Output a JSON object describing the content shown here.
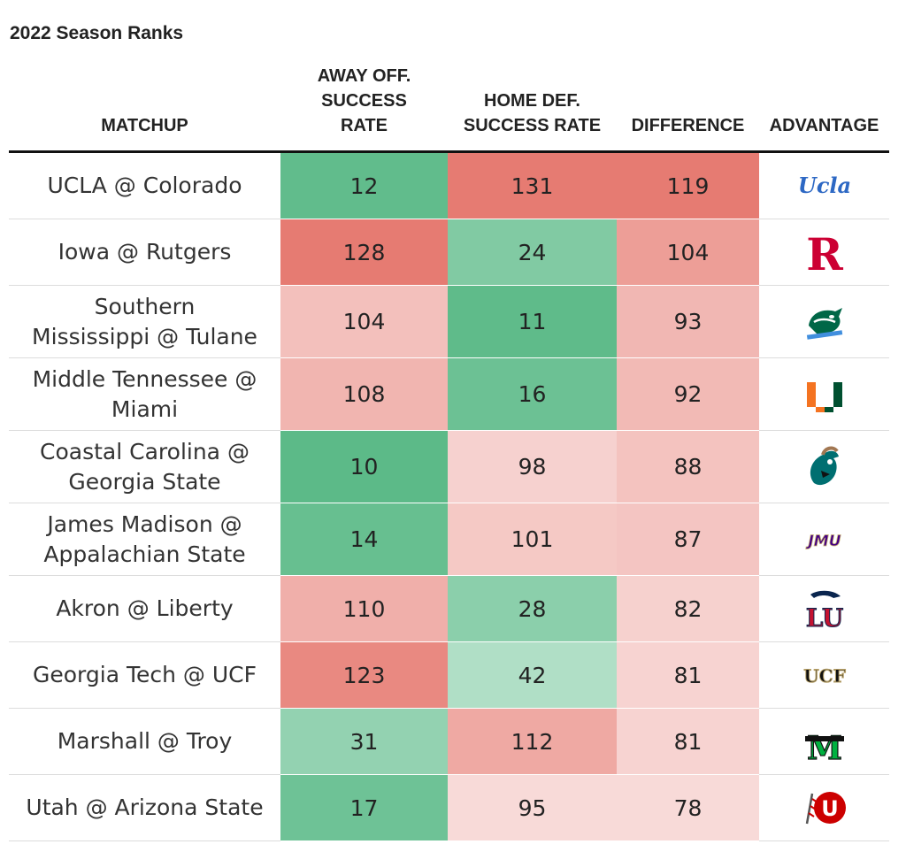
{
  "subtitle": "2022 Season Ranks",
  "headers": {
    "matchup": "MATCHUP",
    "away_off": [
      "AWAY OFF.",
      "SUCCESS",
      "RATE"
    ],
    "home_def": [
      "HOME DEF.",
      "SUCCESS RATE"
    ],
    "difference": "DIFFERENCE",
    "advantage": "ADVANTAGE"
  },
  "colors": {
    "green_strong": "#5cba88",
    "green_light": "#b0dfc6",
    "red_strong": "#e67b72",
    "red_light": "#f8dad8"
  },
  "chart_data": {
    "type": "table",
    "title": "",
    "columns": [
      "MATCHUP",
      "AWAY OFF. SUCCESS RATE",
      "HOME DEF. SUCCESS RATE",
      "DIFFERENCE",
      "ADVANTAGE"
    ],
    "rows": [
      {
        "matchup": [
          "UCLA @ Colorado"
        ],
        "away_off": 12,
        "home_def": 131,
        "difference": 119,
        "advantage": "ucla-logo-icon",
        "logo_text": "Ucla"
      },
      {
        "matchup": [
          "Iowa @ Rutgers"
        ],
        "away_off": 128,
        "home_def": 24,
        "difference": 104,
        "advantage": "rutgers-logo-icon",
        "logo_text": "R"
      },
      {
        "matchup": [
          "Southern",
          "Mississippi @ Tulane"
        ],
        "away_off": 104,
        "home_def": 11,
        "difference": 93,
        "advantage": "tulane-logo-icon"
      },
      {
        "matchup": [
          "Middle Tennessee @",
          "Miami"
        ],
        "away_off": 108,
        "home_def": 16,
        "difference": 92,
        "advantage": "miami-logo-icon"
      },
      {
        "matchup": [
          "Coastal Carolina @",
          "Georgia State"
        ],
        "away_off": 10,
        "home_def": 98,
        "difference": 88,
        "advantage": "coastal-carolina-logo-icon"
      },
      {
        "matchup": [
          "James Madison @",
          "Appalachian State"
        ],
        "away_off": 14,
        "home_def": 101,
        "difference": 87,
        "advantage": "jmu-logo-icon",
        "logo_text": "JMU"
      },
      {
        "matchup": [
          "Akron @ Liberty"
        ],
        "away_off": 110,
        "home_def": 28,
        "difference": 82,
        "advantage": "liberty-logo-icon",
        "logo_text": "LU"
      },
      {
        "matchup": [
          "Georgia Tech @ UCF"
        ],
        "away_off": 123,
        "home_def": 42,
        "difference": 81,
        "advantage": "ucf-logo-icon",
        "logo_text": "UCF"
      },
      {
        "matchup": [
          "Marshall @ Troy"
        ],
        "away_off": 31,
        "home_def": 112,
        "difference": 81,
        "advantage": "marshall-logo-icon",
        "logo_text": "M"
      },
      {
        "matchup": [
          "Utah @ Arizona State"
        ],
        "away_off": 17,
        "home_def": 95,
        "difference": 78,
        "advantage": "utah-logo-icon",
        "logo_text": "U"
      }
    ]
  }
}
